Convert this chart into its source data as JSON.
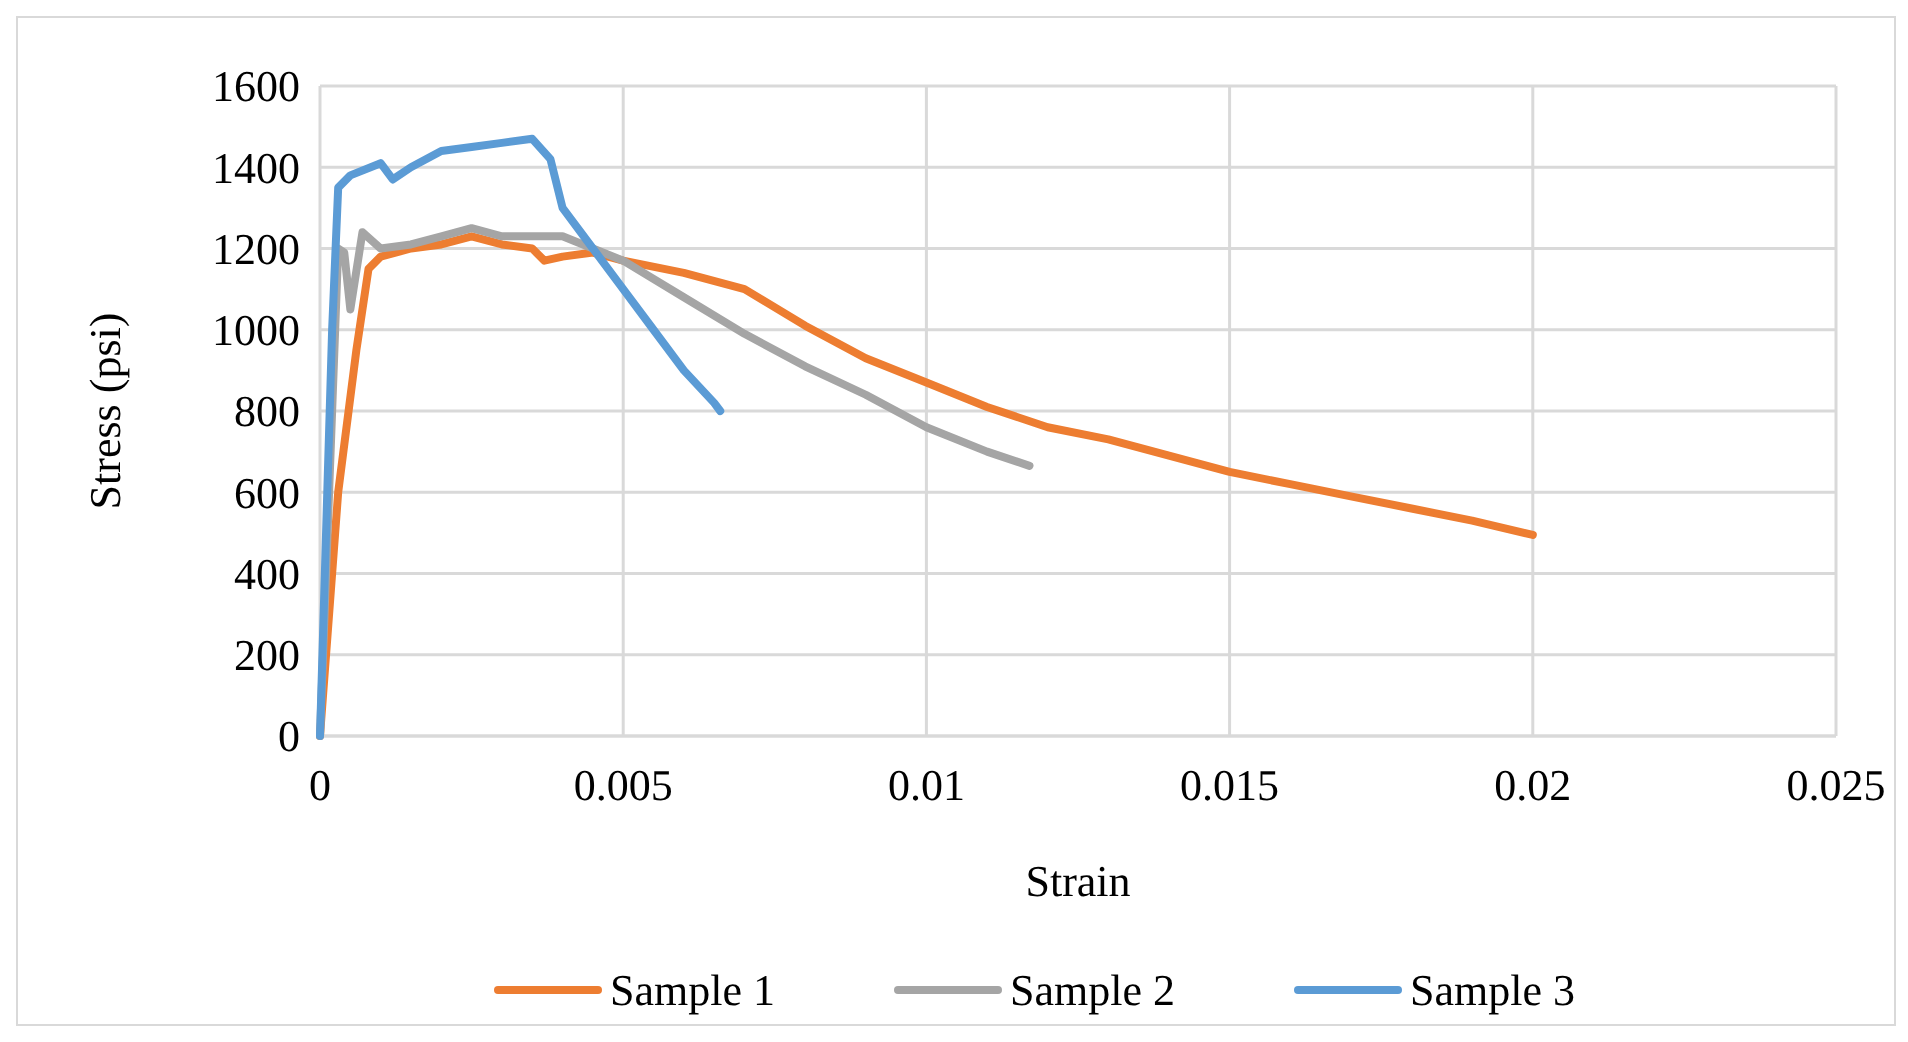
{
  "chart_data": {
    "type": "line",
    "xlabel": "Strain",
    "ylabel": "Stress (psi)",
    "xlim": [
      0,
      0.025
    ],
    "xticks": [
      0,
      0.005,
      0.01,
      0.015,
      0.02,
      0.025
    ],
    "ylim": [
      0,
      1600
    ],
    "yticks": [
      0,
      200,
      400,
      600,
      800,
      1000,
      1200,
      1400,
      1600
    ],
    "grid": true,
    "legend": "bottom",
    "marker": "none",
    "line_style": "solid",
    "series": [
      {
        "name": "Sample 1",
        "color": "#ed7d31",
        "x": [
          0,
          0.0003,
          0.0006,
          0.0008,
          0.001,
          0.0015,
          0.002,
          0.0025,
          0.003,
          0.0035,
          0.0037,
          0.004,
          0.0045,
          0.005,
          0.006,
          0.007,
          0.008,
          0.009,
          0.01,
          0.011,
          0.012,
          0.013,
          0.014,
          0.015,
          0.016,
          0.017,
          0.018,
          0.019,
          0.02
        ],
        "values": [
          0,
          600,
          950,
          1150,
          1180,
          1200,
          1210,
          1230,
          1210,
          1200,
          1170,
          1180,
          1190,
          1170,
          1140,
          1100,
          1010,
          930,
          870,
          810,
          760,
          730,
          690,
          650,
          620,
          590,
          560,
          530,
          495
        ]
      },
      {
        "name": "Sample 2",
        "color": "#a5a5a5",
        "x": [
          0,
          0.0002,
          0.0003,
          0.0004,
          0.0005,
          0.0007,
          0.001,
          0.0015,
          0.002,
          0.0025,
          0.003,
          0.0035,
          0.004,
          0.0045,
          0.005,
          0.006,
          0.007,
          0.008,
          0.009,
          0.01,
          0.011,
          0.0117
        ],
        "values": [
          0,
          800,
          1200,
          1190,
          1050,
          1240,
          1200,
          1210,
          1230,
          1250,
          1230,
          1230,
          1230,
          1200,
          1170,
          1080,
          990,
          910,
          840,
          760,
          700,
          665
        ]
      },
      {
        "name": "Sample 3",
        "color": "#5b9bd5",
        "x": [
          0,
          0.0002,
          0.0003,
          0.0005,
          0.001,
          0.0012,
          0.0015,
          0.002,
          0.0025,
          0.003,
          0.0035,
          0.0038,
          0.004,
          0.0045,
          0.005,
          0.0055,
          0.006,
          0.0065,
          0.0066
        ],
        "values": [
          0,
          1000,
          1350,
          1380,
          1410,
          1370,
          1400,
          1440,
          1450,
          1460,
          1470,
          1420,
          1300,
          1200,
          1100,
          1000,
          900,
          820,
          800
        ]
      }
    ]
  }
}
